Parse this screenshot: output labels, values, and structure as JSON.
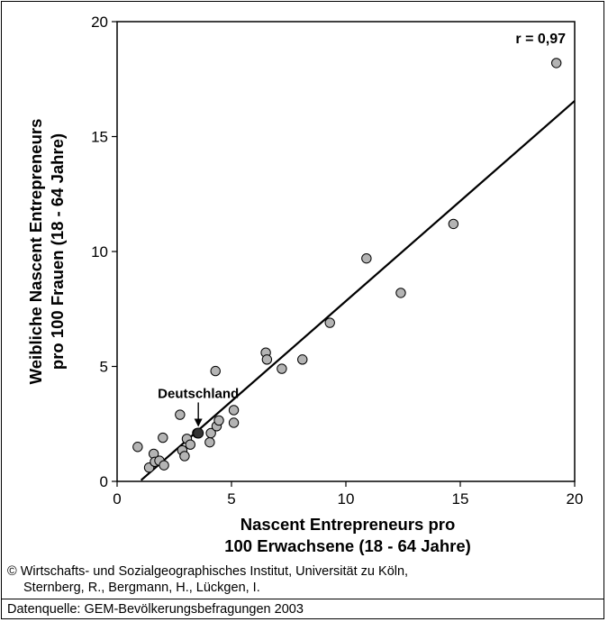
{
  "chart_data": {
    "type": "scatter",
    "xlabel_line1": "Nascent Entrepreneurs pro",
    "xlabel_line2": "100 Erwachsene (18 - 64 Jahre)",
    "ylabel_line1": "Weibliche Nascent Entrepreneurs",
    "ylabel_line2": "pro 100 Frauen (18 - 64 Jahre)",
    "xlim": [
      0,
      20
    ],
    "ylim": [
      0,
      20
    ],
    "xticks": [
      "0",
      "5",
      "10",
      "15",
      "20"
    ],
    "yticks": [
      "0",
      "5",
      "10",
      "15",
      "20"
    ],
    "grid": false,
    "correlation_label": "r = 0,97",
    "points": [
      {
        "x": 0.9,
        "y": 1.5
      },
      {
        "x": 1.4,
        "y": 0.6
      },
      {
        "x": 1.6,
        "y": 1.2
      },
      {
        "x": 1.65,
        "y": 0.85
      },
      {
        "x": 1.85,
        "y": 0.9
      },
      {
        "x": 2.0,
        "y": 1.9
      },
      {
        "x": 2.05,
        "y": 0.7
      },
      {
        "x": 2.75,
        "y": 2.9
      },
      {
        "x": 2.85,
        "y": 1.35
      },
      {
        "x": 2.95,
        "y": 1.1
      },
      {
        "x": 3.05,
        "y": 1.85
      },
      {
        "x": 3.2,
        "y": 1.6
      },
      {
        "x": 3.5,
        "y": 2.1
      },
      {
        "x": 4.05,
        "y": 1.7
      },
      {
        "x": 4.1,
        "y": 2.1
      },
      {
        "x": 4.3,
        "y": 4.8
      },
      {
        "x": 4.35,
        "y": 2.4
      },
      {
        "x": 4.45,
        "y": 2.65
      },
      {
        "x": 5.1,
        "y": 3.1
      },
      {
        "x": 5.1,
        "y": 2.55
      },
      {
        "x": 6.5,
        "y": 5.6
      },
      {
        "x": 6.55,
        "y": 5.3
      },
      {
        "x": 7.2,
        "y": 4.9
      },
      {
        "x": 8.1,
        "y": 5.3
      },
      {
        "x": 9.3,
        "y": 6.9
      },
      {
        "x": 10.9,
        "y": 9.7
      },
      {
        "x": 12.4,
        "y": 8.2
      },
      {
        "x": 14.7,
        "y": 11.2
      },
      {
        "x": 19.2,
        "y": 18.2
      }
    ],
    "highlight": {
      "label": "Deutschland",
      "x": 3.55,
      "y": 2.1
    },
    "regression": {
      "x1": 1.05,
      "y1": 0.05,
      "x2": 20,
      "y2": 16.55
    }
  },
  "footer": {
    "credit_line1": "© Wirtschafts- und Sozialgeographisches Institut, Universität zu Köln,",
    "credit_line2": "Sternberg, R., Bergmann, H., Lückgen, I.",
    "source": "Datenquelle:  GEM-Bevölkerungsbefragungen 2003"
  },
  "colors": {
    "point_fill": "#b4b4b4",
    "highlight_fill": "#333333",
    "line": "#000000"
  }
}
